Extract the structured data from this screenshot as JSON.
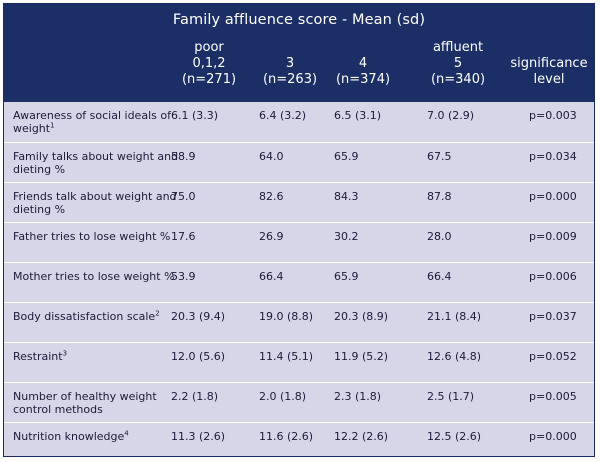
{
  "table": {
    "title": "Family affluence score - Mean (sd)",
    "columns": [
      {
        "lines": [
          "poor",
          "0,1,2",
          "(n=271)"
        ]
      },
      {
        "lines": [
          "3",
          "(n=263)"
        ]
      },
      {
        "lines": [
          "4",
          "(n=374)"
        ]
      },
      {
        "lines": [
          "affluent",
          "5",
          "(n=340)"
        ]
      },
      {
        "lines": [
          "significance",
          "level"
        ]
      }
    ],
    "rows": [
      {
        "label": "Awareness of social ideals of weight",
        "sup": "1",
        "values": [
          "6.1 (3.3)",
          "6.4 (3.2)",
          "6.5 (3.1)",
          "7.0 (2.9)",
          "p=0.003"
        ]
      },
      {
        "label": "Family talks about weight and dieting %",
        "sup": "",
        "values": [
          "58.9",
          "64.0",
          "65.9",
          "67.5",
          "p=0.034"
        ]
      },
      {
        "label": "Friends talk about weight and dieting %",
        "sup": "",
        "values": [
          "75.0",
          "82.6",
          "84.3",
          "87.8",
          "p=0.000"
        ]
      },
      {
        "label": "Father tries to lose weight %",
        "sup": "",
        "values": [
          "17.6",
          "26.9",
          "30.2",
          "28.0",
          "p=0.009"
        ]
      },
      {
        "label": "Mother tries to lose weight %",
        "sup": "",
        "values": [
          "53.9",
          "66.4",
          "65.9",
          "66.4",
          "p=0.006"
        ]
      },
      {
        "label": "Body dissatisfaction scale",
        "sup": "2",
        "values": [
          "20.3 (9.4)",
          "19.0 (8.8)",
          "20.3 (8.9)",
          "21.1 (8.4)",
          "p=0.037"
        ]
      },
      {
        "label": "Restraint",
        "sup": "3",
        "values": [
          "12.0 (5.6)",
          "11.4 (5.1)",
          "11.9 (5.2)",
          "12.6 (4.8)",
          "p=0.052"
        ]
      },
      {
        "label": "Number of healthy weight control methods",
        "sup": "",
        "values": [
          "2.2 (1.8)",
          "2.0 (1.8)",
          "2.3 (1.8)",
          "2.5 (1.7)",
          "p=0.005"
        ]
      },
      {
        "label": "Nutrition knowledge",
        "sup": "4",
        "values": [
          "11.3 (2.6)",
          "11.6 (2.6)",
          "12.2 (2.6)",
          "12.5 (2.6)",
          "p=0.000"
        ]
      }
    ]
  }
}
